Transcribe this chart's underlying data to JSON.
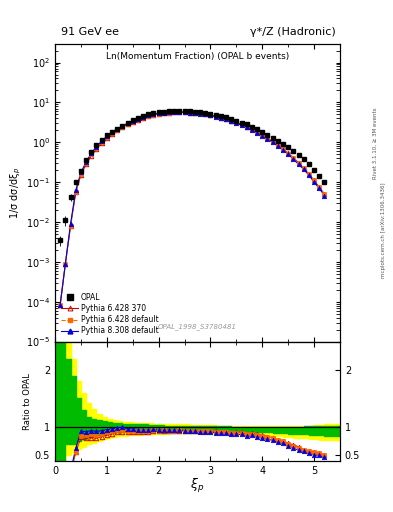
{
  "title_left": "91 GeV ee",
  "title_right": "γ*/Z (Hadronic)",
  "plot_label": "Ln(Momentum Fraction) (OPAL b events)",
  "watermark": "OPAL_1998_S3780481",
  "right_label_top": "Rivet 3.1.10, ≥ 3M events",
  "right_label_bot": "mcplots.cern.ch [arXiv:1306.3436]",
  "ylabel_main": "1/σ dσ/dξ_p",
  "ylabel_ratio": "Ratio to OPAL",
  "xlabel": "ξ_p",
  "ylim_main": [
    1e-05,
    300
  ],
  "ylim_ratio": [
    0.4,
    2.5
  ],
  "xlim": [
    0.0,
    5.5
  ],
  "opal_x": [
    0.1,
    0.2,
    0.3,
    0.4,
    0.5,
    0.6,
    0.7,
    0.8,
    0.9,
    1.0,
    1.1,
    1.2,
    1.3,
    1.4,
    1.5,
    1.6,
    1.7,
    1.8,
    1.9,
    2.0,
    2.1,
    2.2,
    2.3,
    2.4,
    2.5,
    2.6,
    2.7,
    2.8,
    2.9,
    3.0,
    3.1,
    3.2,
    3.3,
    3.4,
    3.5,
    3.6,
    3.7,
    3.8,
    3.9,
    4.0,
    4.1,
    4.2,
    4.3,
    4.4,
    4.5,
    4.6,
    4.7,
    4.8,
    4.9,
    5.0,
    5.1,
    5.2
  ],
  "opal_y": [
    0.0035,
    0.011,
    0.042,
    0.1,
    0.19,
    0.35,
    0.57,
    0.85,
    1.15,
    1.5,
    1.85,
    2.2,
    2.6,
    3.1,
    3.6,
    4.1,
    4.6,
    5.0,
    5.3,
    5.6,
    5.8,
    6.0,
    6.1,
    6.1,
    6.1,
    6.0,
    5.9,
    5.7,
    5.5,
    5.2,
    4.9,
    4.6,
    4.2,
    3.9,
    3.5,
    3.1,
    2.8,
    2.4,
    2.1,
    1.8,
    1.55,
    1.3,
    1.1,
    0.9,
    0.75,
    0.6,
    0.48,
    0.37,
    0.28,
    0.2,
    0.14,
    0.1
  ],
  "opal_yerr": [
    0.001,
    0.003,
    0.008,
    0.015,
    0.025,
    0.04,
    0.05,
    0.07,
    0.08,
    0.09,
    0.09,
    0.09,
    0.09,
    0.1,
    0.1,
    0.1,
    0.1,
    0.1,
    0.1,
    0.1,
    0.1,
    0.1,
    0.1,
    0.1,
    0.1,
    0.1,
    0.1,
    0.09,
    0.09,
    0.09,
    0.09,
    0.08,
    0.08,
    0.07,
    0.07,
    0.06,
    0.06,
    0.05,
    0.05,
    0.04,
    0.04,
    0.04,
    0.03,
    0.03,
    0.03,
    0.02,
    0.02,
    0.02,
    0.02,
    0.01,
    0.01,
    0.01
  ],
  "py6_370_x": [
    0.1,
    0.2,
    0.3,
    0.4,
    0.5,
    0.6,
    0.7,
    0.8,
    0.9,
    1.0,
    1.1,
    1.2,
    1.3,
    1.4,
    1.5,
    1.6,
    1.7,
    1.8,
    1.9,
    2.0,
    2.1,
    2.2,
    2.3,
    2.4,
    2.5,
    2.6,
    2.7,
    2.8,
    2.9,
    3.0,
    3.1,
    3.2,
    3.3,
    3.4,
    3.5,
    3.6,
    3.7,
    3.8,
    3.9,
    4.0,
    4.1,
    4.2,
    4.3,
    4.4,
    4.5,
    4.6,
    4.7,
    4.8,
    4.9,
    5.0,
    5.1,
    5.2
  ],
  "py6_370_y": [
    8.5e-05,
    0.0009,
    0.008,
    0.055,
    0.155,
    0.28,
    0.46,
    0.68,
    0.95,
    1.28,
    1.62,
    1.98,
    2.38,
    2.8,
    3.25,
    3.7,
    4.15,
    4.55,
    4.9,
    5.15,
    5.38,
    5.55,
    5.65,
    5.68,
    5.65,
    5.58,
    5.45,
    5.28,
    5.05,
    4.78,
    4.5,
    4.18,
    3.84,
    3.5,
    3.15,
    2.8,
    2.45,
    2.12,
    1.82,
    1.54,
    1.28,
    1.05,
    0.85,
    0.68,
    0.53,
    0.41,
    0.31,
    0.22,
    0.16,
    0.11,
    0.075,
    0.05
  ],
  "py6_def_x": [
    0.1,
    0.2,
    0.3,
    0.4,
    0.5,
    0.6,
    0.7,
    0.8,
    0.9,
    1.0,
    1.1,
    1.2,
    1.3,
    1.4,
    1.5,
    1.6,
    1.7,
    1.8,
    1.9,
    2.0,
    2.1,
    2.2,
    2.3,
    2.4,
    2.5,
    2.6,
    2.7,
    2.8,
    2.9,
    3.0,
    3.1,
    3.2,
    3.3,
    3.4,
    3.5,
    3.6,
    3.7,
    3.8,
    3.9,
    4.0,
    4.1,
    4.2,
    4.3,
    4.4,
    4.5,
    4.6,
    4.7,
    4.8,
    4.9,
    5.0,
    5.1,
    5.2
  ],
  "py6_def_y": [
    8.5e-05,
    0.0009,
    0.008,
    0.055,
    0.16,
    0.3,
    0.5,
    0.73,
    1.01,
    1.35,
    1.7,
    2.06,
    2.46,
    2.88,
    3.33,
    3.78,
    4.23,
    4.62,
    4.95,
    5.2,
    5.42,
    5.58,
    5.68,
    5.72,
    5.68,
    5.6,
    5.47,
    5.28,
    5.06,
    4.78,
    4.48,
    4.16,
    3.82,
    3.47,
    3.12,
    2.77,
    2.43,
    2.1,
    1.8,
    1.52,
    1.27,
    1.04,
    0.84,
    0.67,
    0.52,
    0.4,
    0.3,
    0.22,
    0.16,
    0.11,
    0.075,
    0.05
  ],
  "py8_def_x": [
    0.1,
    0.2,
    0.3,
    0.4,
    0.5,
    0.6,
    0.7,
    0.8,
    0.9,
    1.0,
    1.1,
    1.2,
    1.3,
    1.4,
    1.5,
    1.6,
    1.7,
    1.8,
    1.9,
    2.0,
    2.1,
    2.2,
    2.3,
    2.4,
    2.5,
    2.6,
    2.7,
    2.8,
    2.9,
    3.0,
    3.1,
    3.2,
    3.3,
    3.4,
    3.5,
    3.6,
    3.7,
    3.8,
    3.9,
    4.0,
    4.1,
    4.2,
    4.3,
    4.4,
    4.5,
    4.6,
    4.7,
    4.8,
    4.9,
    5.0,
    5.1,
    5.2
  ],
  "py8_def_y": [
    8.5e-05,
    0.0009,
    0.009,
    0.062,
    0.175,
    0.32,
    0.53,
    0.78,
    1.07,
    1.42,
    1.78,
    2.16,
    2.57,
    3.0,
    3.45,
    3.9,
    4.33,
    4.72,
    5.05,
    5.3,
    5.5,
    5.65,
    5.73,
    5.73,
    5.68,
    5.57,
    5.42,
    5.22,
    4.98,
    4.7,
    4.4,
    4.08,
    3.73,
    3.38,
    3.03,
    2.68,
    2.35,
    2.03,
    1.73,
    1.45,
    1.21,
    0.99,
    0.8,
    0.64,
    0.5,
    0.38,
    0.28,
    0.21,
    0.15,
    0.1,
    0.07,
    0.046
  ],
  "band_x": [
    0.0,
    0.1,
    0.2,
    0.3,
    0.4,
    0.5,
    0.6,
    0.7,
    0.8,
    0.9,
    1.0,
    1.1,
    1.2,
    1.3,
    1.4,
    1.5,
    1.6,
    1.7,
    1.8,
    1.9,
    2.0,
    2.1,
    2.2,
    2.3,
    2.4,
    2.5,
    2.6,
    2.7,
    2.8,
    2.9,
    3.0,
    3.1,
    3.2,
    3.3,
    3.4,
    3.5,
    3.6,
    3.7,
    3.8,
    3.9,
    4.0,
    4.1,
    4.2,
    4.3,
    4.4,
    4.5,
    4.6,
    4.7,
    4.8,
    4.9,
    5.0,
    5.1,
    5.2,
    5.5
  ],
  "green_lo": [
    0.3,
    0.3,
    0.7,
    0.7,
    0.75,
    0.78,
    0.82,
    0.84,
    0.86,
    0.88,
    0.9,
    0.9,
    0.91,
    0.92,
    0.92,
    0.93,
    0.93,
    0.93,
    0.93,
    0.93,
    0.94,
    0.94,
    0.94,
    0.94,
    0.94,
    0.94,
    0.94,
    0.93,
    0.93,
    0.93,
    0.93,
    0.93,
    0.93,
    0.92,
    0.92,
    0.92,
    0.92,
    0.91,
    0.91,
    0.9,
    0.9,
    0.9,
    0.89,
    0.89,
    0.89,
    0.88,
    0.88,
    0.87,
    0.87,
    0.86,
    0.86,
    0.85,
    0.84,
    0.84
  ],
  "green_hi": [
    2.5,
    2.5,
    2.2,
    1.9,
    1.5,
    1.3,
    1.18,
    1.14,
    1.12,
    1.1,
    1.08,
    1.07,
    1.06,
    1.05,
    1.05,
    1.04,
    1.04,
    1.04,
    1.03,
    1.03,
    1.03,
    1.02,
    1.02,
    1.02,
    1.02,
    1.02,
    1.02,
    1.02,
    1.01,
    1.01,
    1.01,
    1.01,
    1.01,
    1.01,
    1.0,
    1.0,
    1.0,
    1.0,
    1.0,
    1.0,
    1.0,
    1.0,
    1.0,
    1.0,
    1.0,
    1.0,
    1.0,
    1.0,
    1.01,
    1.01,
    1.01,
    1.01,
    1.02,
    1.02
  ],
  "yellow_lo": [
    0.2,
    0.2,
    0.5,
    0.55,
    0.6,
    0.65,
    0.7,
    0.72,
    0.75,
    0.78,
    0.8,
    0.82,
    0.83,
    0.84,
    0.85,
    0.86,
    0.86,
    0.87,
    0.87,
    0.88,
    0.88,
    0.88,
    0.89,
    0.89,
    0.89,
    0.89,
    0.89,
    0.89,
    0.88,
    0.88,
    0.88,
    0.88,
    0.87,
    0.87,
    0.87,
    0.86,
    0.86,
    0.86,
    0.85,
    0.85,
    0.84,
    0.84,
    0.83,
    0.83,
    0.82,
    0.82,
    0.81,
    0.8,
    0.8,
    0.79,
    0.78,
    0.77,
    0.76,
    0.75
  ],
  "yellow_hi": [
    2.8,
    2.8,
    2.5,
    2.2,
    1.8,
    1.6,
    1.42,
    1.32,
    1.22,
    1.18,
    1.14,
    1.12,
    1.1,
    1.09,
    1.08,
    1.07,
    1.07,
    1.06,
    1.06,
    1.05,
    1.05,
    1.05,
    1.04,
    1.04,
    1.04,
    1.04,
    1.03,
    1.03,
    1.03,
    1.03,
    1.03,
    1.02,
    1.02,
    1.02,
    1.02,
    1.02,
    1.01,
    1.01,
    1.01,
    1.01,
    1.01,
    1.01,
    1.01,
    1.01,
    1.01,
    1.01,
    1.01,
    1.02,
    1.02,
    1.02,
    1.03,
    1.03,
    1.04,
    1.04
  ],
  "color_opal": "#000000",
  "color_py6_370": "#cc0000",
  "color_py6_def": "#ff6600",
  "color_py8_def": "#0000dd",
  "color_green": "#00bb00",
  "color_yellow": "#ffff00",
  "legend_opal": "OPAL",
  "legend_py6_370": "Pythia 6.428 370",
  "legend_py6_def": "Pythia 6.428 default",
  "legend_py8_def": "Pythia 8.308 default"
}
